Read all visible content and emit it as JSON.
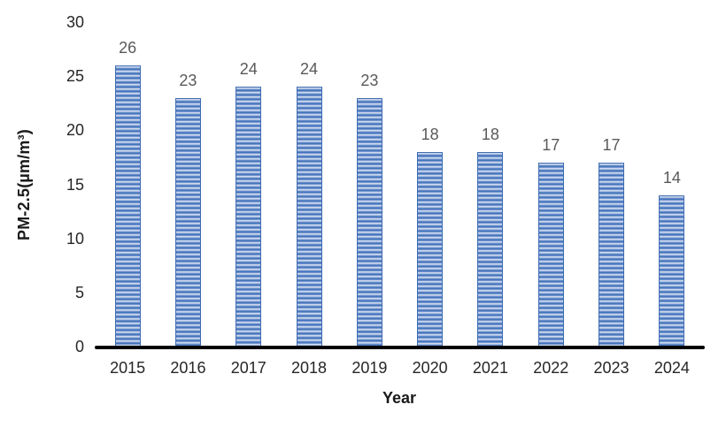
{
  "chart_data": {
    "type": "bar",
    "title": "",
    "xlabel": "Year",
    "ylabel": "PM-2.5(µm/m³)",
    "categories": [
      "2015",
      "2016",
      "2017",
      "2018",
      "2019",
      "2020",
      "2021",
      "2022",
      "2023",
      "2024"
    ],
    "values": [
      26,
      23,
      24,
      24,
      23,
      18,
      18,
      17,
      17,
      14
    ],
    "ylim": [
      0,
      30
    ],
    "yticks": [
      0,
      5,
      10,
      15,
      20,
      25,
      30
    ],
    "grid": false,
    "legend": "none",
    "data_labels_shown": true,
    "colors": {
      "bar_stripe_light": "#cdd9ee",
      "bar_stripe_mid": "#7a9bd1",
      "bar_stripe_dark": "#4574bc",
      "bar_border": "#3f6cb0",
      "axis_line": "#000000",
      "tick_label": "#262626",
      "data_label": "#595959",
      "axis_title": "#1a1a1a",
      "background": "#ffffff"
    }
  }
}
